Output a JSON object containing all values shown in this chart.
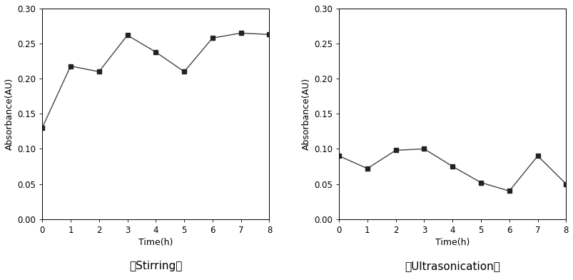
{
  "stirring": {
    "x": [
      0,
      1,
      2,
      3,
      4,
      5,
      6,
      7,
      8
    ],
    "y": [
      0.13,
      0.218,
      0.21,
      0.262,
      0.238,
      0.21,
      0.258,
      0.265,
      0.263
    ],
    "xlabel": "Time(h)",
    "ylabel": "Absorbance(AU)",
    "title": "〈Stirring〉",
    "xlim": [
      0,
      8
    ],
    "ylim": [
      0.0,
      0.3
    ],
    "yticks": [
      0.0,
      0.05,
      0.1,
      0.15,
      0.2,
      0.25,
      0.3
    ],
    "xticks": [
      0,
      1,
      2,
      3,
      4,
      5,
      6,
      7,
      8
    ]
  },
  "ultrasonication": {
    "x": [
      0,
      1,
      2,
      3,
      4,
      5,
      6,
      7,
      8
    ],
    "y": [
      0.09,
      0.072,
      0.098,
      0.1,
      0.075,
      0.052,
      0.04,
      0.09,
      0.05
    ],
    "xlabel": "Time(h)",
    "ylabel": "Absorbance(AU)",
    "title": "〈Ultrasonication〉",
    "xlim": [
      0,
      8
    ],
    "ylim": [
      0.0,
      0.3
    ],
    "yticks": [
      0.0,
      0.05,
      0.1,
      0.15,
      0.2,
      0.25,
      0.3
    ],
    "xticks": [
      0,
      1,
      2,
      3,
      4,
      5,
      6,
      7,
      8
    ]
  },
  "line_color": "#444444",
  "marker": "s",
  "marker_size": 5,
  "marker_color": "#222222",
  "line_width": 1.0,
  "title_fontsize": 11,
  "label_fontsize": 9,
  "tick_fontsize": 8.5,
  "fig_width": 8.04,
  "fig_height": 3.92,
  "dpi": 100
}
